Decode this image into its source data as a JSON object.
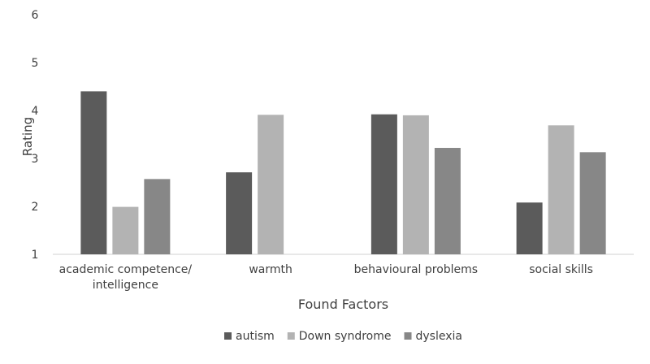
{
  "chart_data": {
    "type": "bar",
    "title": "",
    "xlabel": "Found Factors",
    "ylabel": "Rating",
    "ylim": [
      1,
      6
    ],
    "yticks": [
      1,
      2,
      3,
      4,
      5,
      6
    ],
    "grid": false,
    "legend_position": "bottom",
    "category_lines": [
      [
        "academic competence/",
        "intelligence"
      ],
      [
        "warmth"
      ],
      [
        "behavioural problems"
      ],
      [
        "social skills"
      ]
    ],
    "categories": [
      "academic competence/ intelligence",
      "warmth",
      "behavioural problems",
      "social skills"
    ],
    "series": [
      {
        "name": "autism",
        "color": "#5b5b5b",
        "values": [
          4.4,
          2.71,
          3.92,
          2.08
        ]
      },
      {
        "name": "Down syndrome",
        "color": "#b3b3b3",
        "values": [
          1.99,
          3.91,
          3.9,
          3.69
        ]
      },
      {
        "name": "dyslexia",
        "color": "#878787",
        "values": [
          2.57,
          null,
          3.22,
          3.13
        ]
      }
    ]
  }
}
